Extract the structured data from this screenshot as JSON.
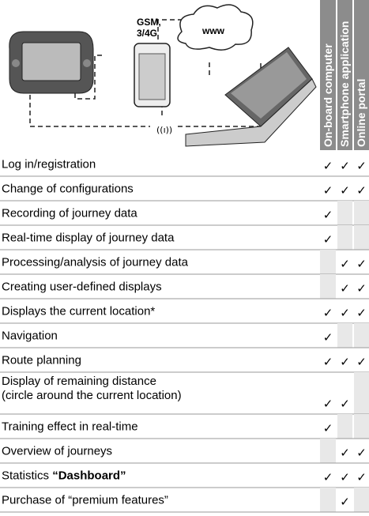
{
  "illustration": {
    "network_label": [
      "GSM,",
      "3/4G"
    ],
    "cloud_label": "www"
  },
  "table": {
    "columns": [
      "On-board computer",
      "Smartphone application",
      "Online portal"
    ],
    "rows": [
      {
        "label": [
          "Log in/registration"
        ],
        "checks": [
          "✓",
          "✓",
          "✓"
        ]
      },
      {
        "label": [
          "Change of configurations"
        ],
        "checks": [
          "✓",
          "✓",
          "✓"
        ]
      },
      {
        "label": [
          "Recording of journey data"
        ],
        "checks": [
          "✓",
          null,
          null
        ]
      },
      {
        "label": [
          "Real-time display of journey data"
        ],
        "checks": [
          "✓",
          null,
          null
        ]
      },
      {
        "label": [
          "Processing/analysis of journey data"
        ],
        "checks": [
          null,
          "✓",
          "✓"
        ]
      },
      {
        "label": [
          "Creating user-defined displays"
        ],
        "checks": [
          null,
          "✓",
          "✓"
        ]
      },
      {
        "label": [
          "Displays the current location*"
        ],
        "checks": [
          "✓",
          "✓",
          "✓"
        ]
      },
      {
        "label": [
          "Navigation"
        ],
        "checks": [
          "✓",
          null,
          null
        ]
      },
      {
        "label": [
          "Route planning"
        ],
        "checks": [
          "✓",
          "✓",
          "✓"
        ]
      },
      {
        "label": [
          "Display of remaining distance",
          "(circle around the current location)"
        ],
        "checks": [
          "✓",
          "✓",
          null
        ]
      },
      {
        "label": [
          "Training effect in real-time"
        ],
        "checks": [
          "✓",
          null,
          null
        ]
      },
      {
        "label": [
          "Overview of journeys"
        ],
        "checks": [
          null,
          "✓",
          "✓"
        ]
      },
      {
        "label": [
          "Statistics ",
          "“Dashboard”"
        ],
        "checks": [
          "✓",
          "✓",
          "✓"
        ]
      },
      {
        "label": [
          "Purchase of “premium features”"
        ],
        "checks": [
          null,
          "✓",
          null
        ]
      }
    ]
  }
}
